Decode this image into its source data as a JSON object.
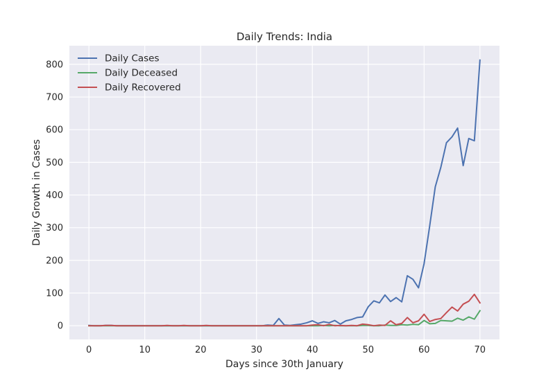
{
  "chart_data": {
    "type": "line",
    "title": "Daily Trends: India",
    "xlabel": "Days since 30th January",
    "ylabel": "Daily Growth in Cases",
    "xlim": [
      -3.5,
      73.5
    ],
    "ylim": [
      -42,
      857
    ],
    "xticks": [
      0,
      10,
      20,
      30,
      40,
      50,
      60,
      70
    ],
    "yticks": [
      0,
      100,
      200,
      300,
      400,
      500,
      600,
      700,
      800
    ],
    "grid": true,
    "legend": "top-left",
    "series": [
      {
        "name": "Daily Cases",
        "color": "#4c72b0",
        "x": [
          0,
          1,
          2,
          3,
          4,
          5,
          6,
          7,
          8,
          9,
          10,
          11,
          12,
          13,
          14,
          15,
          16,
          17,
          18,
          19,
          20,
          21,
          22,
          23,
          24,
          25,
          26,
          27,
          28,
          29,
          30,
          31,
          32,
          33,
          34,
          35,
          36,
          37,
          38,
          39,
          40,
          41,
          42,
          43,
          44,
          45,
          46,
          47,
          48,
          49,
          50,
          51,
          52,
          53,
          54,
          55,
          56,
          57,
          58,
          59,
          60,
          61,
          62,
          63,
          64,
          65,
          66,
          67,
          68,
          69,
          70
        ],
        "values": [
          1,
          0,
          0,
          1,
          1,
          0,
          0,
          0,
          0,
          0,
          0,
          0,
          0,
          0,
          0,
          0,
          0,
          0,
          0,
          0,
          0,
          0,
          0,
          0,
          0,
          0,
          0,
          0,
          0,
          0,
          0,
          0,
          2,
          1,
          22,
          2,
          1,
          3,
          5,
          9,
          15,
          7,
          12,
          9,
          16,
          5,
          15,
          19,
          25,
          27,
          58,
          76,
          70,
          94,
          74,
          86,
          73,
          153,
          142,
          116,
          190,
          305,
          425,
          485,
          560,
          578,
          605,
          490,
          573,
          566,
          813
        ]
      },
      {
        "name": "Daily Deceased",
        "color": "#55a868",
        "x": [
          0,
          1,
          2,
          3,
          4,
          5,
          6,
          7,
          8,
          9,
          10,
          11,
          12,
          13,
          14,
          15,
          16,
          17,
          18,
          19,
          20,
          21,
          22,
          23,
          24,
          25,
          26,
          27,
          28,
          29,
          30,
          31,
          32,
          33,
          34,
          35,
          36,
          37,
          38,
          39,
          40,
          41,
          42,
          43,
          44,
          45,
          46,
          47,
          48,
          49,
          50,
          51,
          52,
          53,
          54,
          55,
          56,
          57,
          58,
          59,
          60,
          61,
          62,
          63,
          64,
          65,
          66,
          67,
          68,
          69,
          70
        ],
        "values": [
          0,
          0,
          0,
          0,
          0,
          0,
          0,
          0,
          0,
          0,
          0,
          0,
          0,
          0,
          0,
          0,
          0,
          0,
          0,
          0,
          0,
          0,
          0,
          0,
          0,
          0,
          0,
          0,
          0,
          0,
          0,
          0,
          0,
          0,
          0,
          0,
          0,
          0,
          0,
          0,
          0,
          0,
          1,
          0,
          1,
          0,
          0,
          0,
          0,
          1,
          1,
          0,
          0,
          2,
          1,
          1,
          3,
          2,
          4,
          3,
          16,
          6,
          7,
          16,
          15,
          14,
          23,
          17,
          27,
          20,
          46
        ]
      },
      {
        "name": "Daily Recovered",
        "color": "#c44e52",
        "x": [
          0,
          1,
          2,
          3,
          4,
          5,
          6,
          7,
          8,
          9,
          10,
          11,
          12,
          13,
          14,
          15,
          16,
          17,
          18,
          19,
          20,
          21,
          22,
          23,
          24,
          25,
          26,
          27,
          28,
          29,
          30,
          31,
          32,
          33,
          34,
          35,
          36,
          37,
          38,
          39,
          40,
          41,
          42,
          43,
          44,
          45,
          46,
          47,
          48,
          49,
          50,
          51,
          52,
          53,
          54,
          55,
          56,
          57,
          58,
          59,
          60,
          61,
          62,
          63,
          64,
          65,
          66,
          67,
          68,
          69,
          70
        ],
        "values": [
          0,
          0,
          0,
          1,
          1,
          0,
          0,
          0,
          0,
          0,
          0,
          0,
          0,
          0,
          1,
          0,
          0,
          1,
          0,
          0,
          0,
          1,
          0,
          0,
          0,
          0,
          0,
          0,
          0,
          0,
          0,
          0,
          0,
          0,
          0,
          0,
          0,
          0,
          0,
          0,
          2,
          3,
          0,
          4,
          0,
          1,
          0,
          1,
          0,
          5,
          3,
          0,
          2,
          1,
          15,
          3,
          7,
          25,
          9,
          15,
          35,
          13,
          19,
          22,
          40,
          57,
          45,
          66,
          75,
          96,
          70
        ]
      }
    ]
  }
}
